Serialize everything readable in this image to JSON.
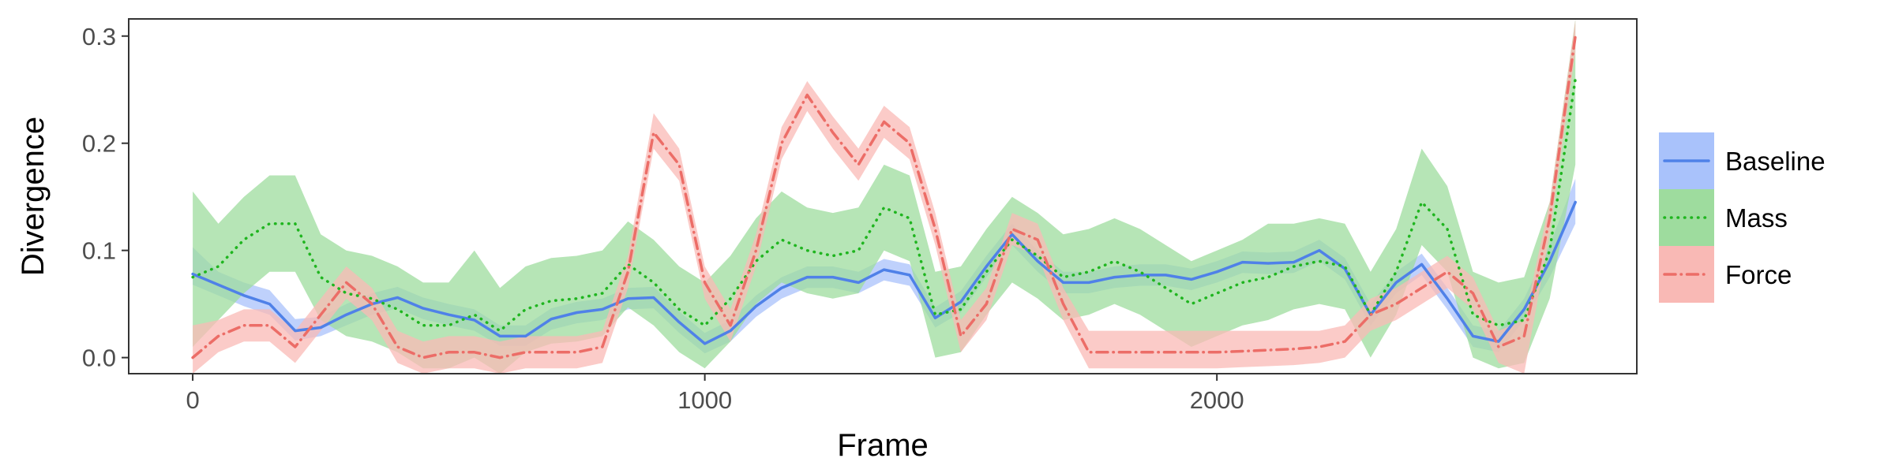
{
  "chart_data": {
    "type": "line",
    "title": "",
    "xlabel": "Frame",
    "ylabel": "Divergence",
    "xlim": [
      -125,
      2820
    ],
    "ylim": [
      -0.015,
      0.316
    ],
    "x_ticks": [
      0,
      1000,
      2000
    ],
    "x_tick_labels": [
      "0",
      "1000",
      "2000"
    ],
    "y_ticks": [
      0.0,
      0.1,
      0.2,
      0.3
    ],
    "y_tick_labels": [
      "0.0",
      "0.1",
      "0.2",
      "0.3"
    ],
    "grid": false,
    "legend_position": "right",
    "series": [
      {
        "name": "Baseline",
        "color": "#4f81e8",
        "band_color": "#a9c2fb",
        "line_style": "solid",
        "x": [
          0,
          50,
          100,
          150,
          200,
          250,
          300,
          350,
          400,
          450,
          500,
          550,
          600,
          650,
          700,
          750,
          800,
          850,
          900,
          950,
          1000,
          1050,
          1100,
          1150,
          1200,
          1250,
          1300,
          1350,
          1400,
          1450,
          1500,
          1550,
          1600,
          1650,
          1700,
          1750,
          1800,
          1850,
          1900,
          1950,
          2000,
          2050,
          2100,
          2150,
          2200,
          2250,
          2300,
          2350,
          2400,
          2450,
          2500,
          2550,
          2600,
          2650,
          2700
        ],
        "y": [
          0.078,
          0.068,
          0.058,
          0.05,
          0.025,
          0.028,
          0.04,
          0.05,
          0.056,
          0.046,
          0.04,
          0.035,
          0.02,
          0.02,
          0.036,
          0.042,
          0.045,
          0.055,
          0.056,
          0.033,
          0.013,
          0.025,
          0.048,
          0.065,
          0.075,
          0.075,
          0.07,
          0.082,
          0.077,
          0.037,
          0.052,
          0.085,
          0.115,
          0.09,
          0.07,
          0.07,
          0.075,
          0.077,
          0.077,
          0.073,
          0.08,
          0.089,
          0.088,
          0.089,
          0.1,
          0.083,
          0.04,
          0.07,
          0.087,
          0.055,
          0.02,
          0.015,
          0.045,
          0.09,
          0.145
        ],
        "ymin": [
          0.068,
          0.058,
          0.048,
          0.04,
          0.016,
          0.02,
          0.03,
          0.04,
          0.046,
          0.036,
          0.03,
          0.025,
          0.011,
          0.011,
          0.026,
          0.032,
          0.035,
          0.045,
          0.046,
          0.023,
          0.004,
          0.015,
          0.038,
          0.055,
          0.065,
          0.065,
          0.06,
          0.072,
          0.067,
          0.028,
          0.042,
          0.075,
          0.105,
          0.08,
          0.06,
          0.06,
          0.065,
          0.067,
          0.067,
          0.063,
          0.07,
          0.079,
          0.078,
          0.079,
          0.09,
          0.073,
          0.03,
          0.06,
          0.077,
          0.045,
          0.01,
          0.005,
          0.035,
          0.075,
          0.125
        ],
        "ymax": [
          0.103,
          0.08,
          0.07,
          0.063,
          0.036,
          0.038,
          0.05,
          0.06,
          0.066,
          0.056,
          0.05,
          0.045,
          0.03,
          0.03,
          0.046,
          0.052,
          0.055,
          0.065,
          0.066,
          0.043,
          0.023,
          0.035,
          0.058,
          0.075,
          0.085,
          0.085,
          0.08,
          0.092,
          0.087,
          0.047,
          0.062,
          0.095,
          0.125,
          0.1,
          0.08,
          0.08,
          0.085,
          0.087,
          0.087,
          0.083,
          0.09,
          0.099,
          0.098,
          0.099,
          0.11,
          0.093,
          0.05,
          0.08,
          0.097,
          0.065,
          0.03,
          0.025,
          0.055,
          0.105,
          0.167
        ]
      },
      {
        "name": "Mass",
        "color": "#1fb51f",
        "band_color": "#9edc9e",
        "line_style": "dotted",
        "x": [
          0,
          50,
          100,
          150,
          200,
          250,
          300,
          350,
          400,
          450,
          500,
          550,
          600,
          650,
          700,
          750,
          800,
          850,
          900,
          950,
          1000,
          1050,
          1100,
          1150,
          1200,
          1250,
          1300,
          1350,
          1400,
          1450,
          1500,
          1550,
          1600,
          1650,
          1700,
          1750,
          1800,
          1850,
          1900,
          1950,
          2000,
          2050,
          2100,
          2150,
          2200,
          2250,
          2300,
          2350,
          2400,
          2450,
          2500,
          2550,
          2600,
          2650,
          2700
        ],
        "y": [
          0.075,
          0.085,
          0.11,
          0.125,
          0.125,
          0.075,
          0.06,
          0.055,
          0.045,
          0.03,
          0.03,
          0.04,
          0.025,
          0.045,
          0.053,
          0.055,
          0.06,
          0.087,
          0.07,
          0.045,
          0.03,
          0.055,
          0.09,
          0.11,
          0.1,
          0.095,
          0.1,
          0.14,
          0.13,
          0.04,
          0.045,
          0.08,
          0.11,
          0.095,
          0.075,
          0.08,
          0.09,
          0.08,
          0.065,
          0.05,
          0.06,
          0.07,
          0.075,
          0.085,
          0.09,
          0.085,
          0.04,
          0.08,
          0.145,
          0.12,
          0.04,
          0.03,
          0.035,
          0.1,
          0.26
        ],
        "ymin": [
          0.01,
          0.035,
          0.06,
          0.08,
          0.08,
          0.035,
          0.02,
          0.015,
          0.005,
          -0.01,
          -0.01,
          0.0,
          -0.015,
          0.005,
          0.013,
          0.015,
          0.02,
          0.047,
          0.03,
          0.005,
          -0.01,
          0.015,
          0.05,
          0.07,
          0.06,
          0.055,
          0.06,
          0.1,
          0.09,
          0.0,
          0.005,
          0.04,
          0.07,
          0.055,
          0.035,
          0.04,
          0.05,
          0.04,
          0.025,
          0.01,
          0.02,
          0.03,
          0.035,
          0.045,
          0.05,
          0.045,
          0.0,
          0.04,
          0.105,
          0.08,
          0.0,
          -0.01,
          -0.005,
          0.055,
          0.18
        ],
        "ymax": [
          0.155,
          0.125,
          0.15,
          0.17,
          0.17,
          0.115,
          0.1,
          0.095,
          0.085,
          0.07,
          0.07,
          0.1,
          0.065,
          0.085,
          0.093,
          0.095,
          0.1,
          0.127,
          0.11,
          0.085,
          0.07,
          0.095,
          0.13,
          0.155,
          0.14,
          0.135,
          0.14,
          0.18,
          0.17,
          0.08,
          0.085,
          0.12,
          0.15,
          0.135,
          0.115,
          0.12,
          0.13,
          0.12,
          0.105,
          0.09,
          0.1,
          0.11,
          0.125,
          0.125,
          0.13,
          0.125,
          0.08,
          0.12,
          0.195,
          0.16,
          0.08,
          0.07,
          0.075,
          0.145,
          0.316
        ]
      },
      {
        "name": "Force",
        "color": "#ec6d67",
        "band_color": "#f9b9b5",
        "line_style": "dashdot",
        "x": [
          0,
          50,
          100,
          150,
          200,
          250,
          300,
          350,
          400,
          450,
          500,
          550,
          600,
          650,
          700,
          750,
          800,
          850,
          900,
          950,
          1000,
          1050,
          1100,
          1150,
          1200,
          1250,
          1300,
          1350,
          1400,
          1450,
          1500,
          1550,
          1600,
          1650,
          1700,
          1750,
          1800,
          1850,
          1900,
          1950,
          2000,
          2050,
          2100,
          2150,
          2200,
          2250,
          2300,
          2350,
          2400,
          2450,
          2500,
          2550,
          2600,
          2650,
          2700
        ],
        "y": [
          0.0,
          0.02,
          0.03,
          0.03,
          0.01,
          0.04,
          0.07,
          0.05,
          0.01,
          0.0,
          0.005,
          0.005,
          0.0,
          0.005,
          0.005,
          0.005,
          0.01,
          0.08,
          0.21,
          0.18,
          0.07,
          0.03,
          0.1,
          0.2,
          0.245,
          0.21,
          0.18,
          0.22,
          0.2,
          0.12,
          0.02,
          0.05,
          0.12,
          0.11,
          0.05,
          0.005,
          0.005,
          0.005,
          0.005,
          0.005,
          0.005,
          0.006,
          0.007,
          0.008,
          0.01,
          0.015,
          0.04,
          0.05,
          0.065,
          0.08,
          0.06,
          0.01,
          0.02,
          0.13,
          0.3
        ],
        "ymin": [
          -0.015,
          0.005,
          0.015,
          0.015,
          -0.005,
          0.025,
          0.055,
          0.035,
          -0.005,
          -0.015,
          -0.01,
          -0.01,
          -0.015,
          -0.01,
          -0.01,
          -0.01,
          -0.005,
          0.065,
          0.195,
          0.165,
          0.055,
          0.015,
          0.085,
          0.185,
          0.23,
          0.195,
          0.165,
          0.205,
          0.185,
          0.105,
          0.005,
          0.035,
          0.105,
          0.095,
          0.035,
          -0.01,
          -0.01,
          -0.01,
          -0.01,
          -0.01,
          -0.01,
          -0.009,
          -0.008,
          -0.007,
          -0.005,
          0.0,
          0.025,
          0.035,
          0.05,
          0.065,
          0.045,
          -0.005,
          -0.015,
          0.115,
          0.285
        ],
        "ymax": [
          0.03,
          0.035,
          0.045,
          0.045,
          0.025,
          0.055,
          0.085,
          0.065,
          0.025,
          0.015,
          0.02,
          0.02,
          0.015,
          0.02,
          0.02,
          0.02,
          0.025,
          0.095,
          0.228,
          0.195,
          0.085,
          0.045,
          0.115,
          0.215,
          0.258,
          0.225,
          0.195,
          0.235,
          0.215,
          0.135,
          0.035,
          0.065,
          0.135,
          0.125,
          0.065,
          0.025,
          0.025,
          0.025,
          0.025,
          0.025,
          0.025,
          0.025,
          0.025,
          0.025,
          0.025,
          0.03,
          0.055,
          0.065,
          0.08,
          0.095,
          0.075,
          0.025,
          0.035,
          0.145,
          0.315
        ]
      }
    ]
  }
}
